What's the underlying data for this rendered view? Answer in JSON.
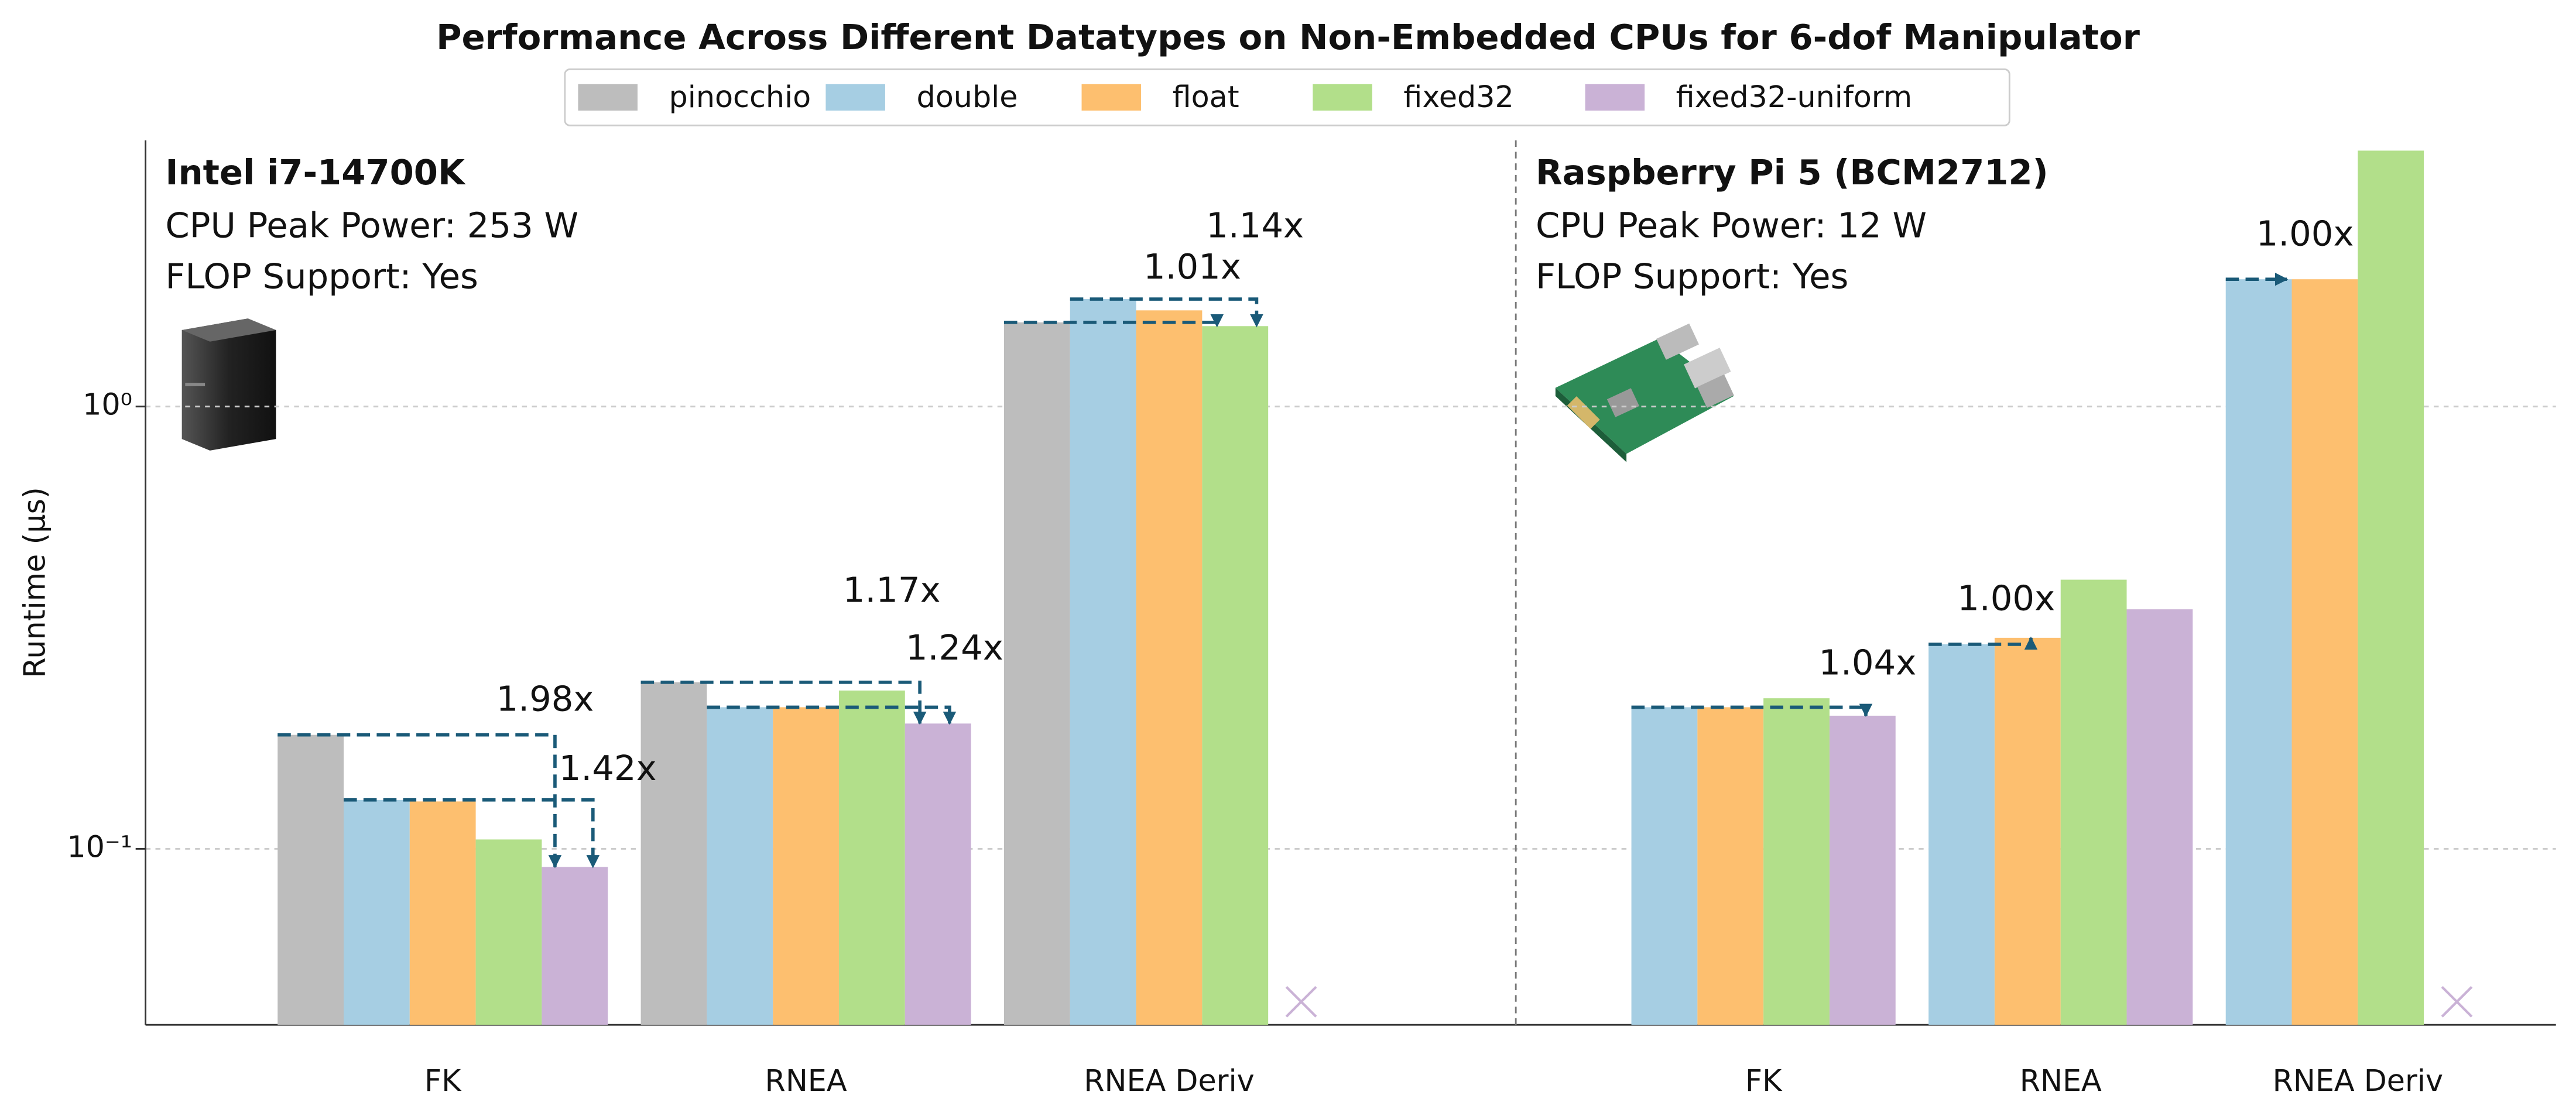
{
  "chart_data": {
    "type": "bar",
    "title": "Performance Across Different Datatypes on Non-Embedded CPUs for 6-dof Manipulator",
    "y_label": "Runtime (µs)",
    "log_scale": true,
    "grid": true,
    "legend": "top",
    "ylim": [
      0.04,
      4
    ],
    "yticks": [
      {
        "value": 1,
        "label": "10⁰"
      },
      {
        "value": 0.1,
        "label": "10⁻¹"
      }
    ],
    "panels": [
      {
        "title": "Intel i7-14700K",
        "subtitle": [
          "CPU Peak Power: 253 W",
          "FLOP Support: Yes"
        ],
        "categories": [
          "FK",
          "RNEA",
          "RNEA Deriv"
        ],
        "series": [
          {
            "name": "pinocchio",
            "color": "#bdbdbd",
            "values": [
              0.181,
              0.238,
              1.55
            ]
          },
          {
            "name": "double",
            "color": "#a6cee3",
            "values": [
              0.129,
              0.209,
              1.75
            ]
          },
          {
            "name": "float",
            "color": "#fdbf6f",
            "values": [
              0.128,
              0.209,
              1.65
            ]
          },
          {
            "name": "fixed32",
            "color": "#b2df8a",
            "values": [
              0.105,
              0.228,
              1.52
            ]
          },
          {
            "name": "fixed32-uniform",
            "color": "#cab2d6",
            "values": [
              0.091,
              0.192,
              null
            ]
          }
        ],
        "annotations": [
          "1.98x",
          "1.42x",
          "1.17x",
          "1.24x",
          "1.01x",
          "1.14x"
        ]
      },
      {
        "title": "Raspberry Pi 5 (BCM2712)",
        "subtitle": [
          "CPU Peak Power: 12 W",
          "FLOP Support: Yes"
        ],
        "categories": [
          "FK",
          "RNEA",
          "RNEA Deriv"
        ],
        "series": [
          {
            "name": "double",
            "color": "#a6cee3",
            "values": [
              0.209,
              0.29,
              1.94
            ]
          },
          {
            "name": "float",
            "color": "#fdbf6f",
            "values": [
              0.209,
              0.3,
              1.94
            ]
          },
          {
            "name": "fixed32",
            "color": "#b2df8a",
            "values": [
              0.219,
              0.406,
              3.79
            ]
          },
          {
            "name": "fixed32-uniform",
            "color": "#cab2d6",
            "values": [
              0.2,
              0.348,
              null
            ]
          }
        ],
        "annotations": [
          "1.04x",
          "1.00x",
          "1.00x"
        ]
      }
    ]
  }
}
